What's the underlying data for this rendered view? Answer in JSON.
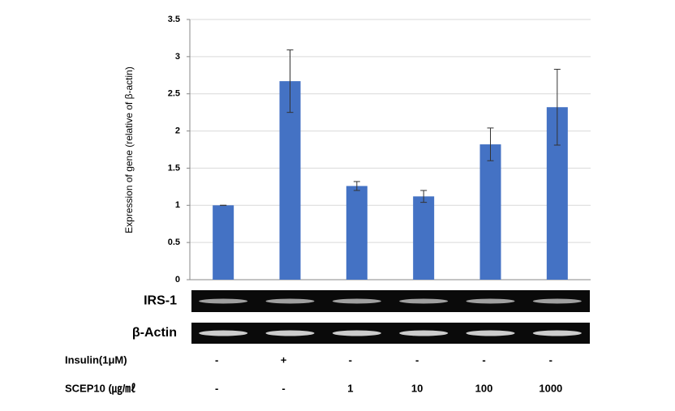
{
  "chart_data": {
    "type": "bar",
    "y_label": "Expression of gene (relative of β-actin)",
    "categories": [
      null,
      null,
      null,
      null,
      null,
      null
    ],
    "values": [
      1.0,
      2.67,
      1.26,
      1.12,
      1.82,
      2.32
    ],
    "errors": [
      0,
      0.42,
      0.06,
      0.08,
      0.22,
      0.51
    ],
    "color": "#4472c4",
    "ylim": [
      0,
      3.5
    ],
    "yticks": [
      0,
      0.5,
      1,
      1.5,
      2,
      2.5,
      3,
      3.5
    ],
    "grid": true,
    "gel_rows": [
      "IRS-1",
      "β-Actin"
    ],
    "treatments": [
      {
        "name": "Insulin(1μM)",
        "labels": [
          "-",
          "+",
          "-",
          "-",
          "-",
          "-"
        ]
      },
      {
        "name": "SCEP10 (㎍/㎖",
        "labels": [
          "-",
          "-",
          "1",
          "10",
          "100",
          "1000"
        ]
      }
    ]
  }
}
